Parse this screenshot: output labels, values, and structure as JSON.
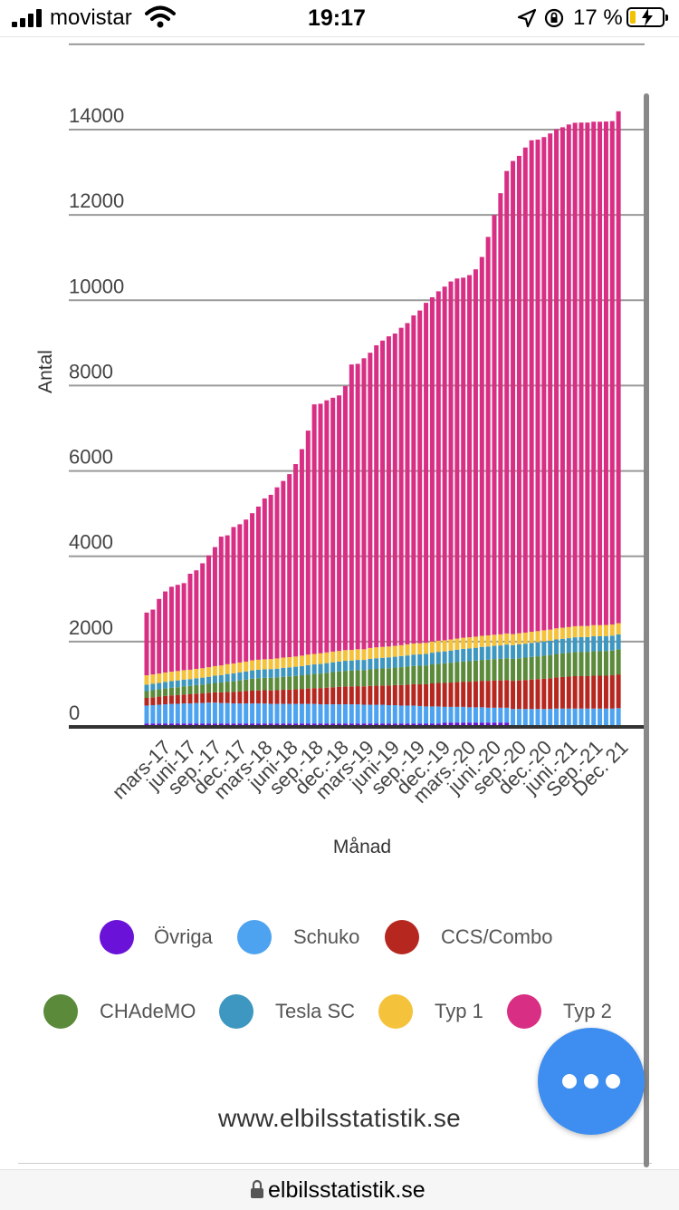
{
  "status_bar": {
    "carrier": "movistar",
    "time": "19:17",
    "battery": "17 %"
  },
  "chart_data": {
    "type": "bar",
    "stacked": true,
    "ylabel": "Antal",
    "xlabel": "Månad",
    "ylim": [
      0,
      14000
    ],
    "y_ticks": [
      0,
      2000,
      4000,
      6000,
      8000,
      10000,
      12000,
      14000
    ],
    "x_tick_labels": [
      "mars-17",
      "juni-17",
      "sep.-17",
      "dec.-17",
      "mars-18",
      "juni-18",
      "sep.-18",
      "dec.-18",
      "mars-19",
      "juni-19",
      "sep.-19",
      "dec.-19",
      "mars.-20",
      "juni.-20",
      "sep.-20",
      "dec.-20",
      "juni.-21",
      "Sep.-21",
      "Dec. 21"
    ],
    "grid": true,
    "legend_position": "bottom",
    "series": [
      {
        "name": "Övriga",
        "color": "#6a12d8",
        "values": [
          80,
          80,
          80,
          80,
          80,
          80,
          80,
          80,
          80,
          80,
          80,
          80,
          80,
          80,
          80,
          80,
          80,
          80,
          80,
          80,
          80,
          80,
          80,
          80,
          80,
          80,
          80,
          80,
          80,
          80,
          80,
          80,
          80,
          80,
          80,
          80,
          80,
          80,
          80,
          80,
          80,
          80,
          80,
          80,
          80,
          80,
          80,
          80,
          100,
          100,
          100,
          100,
          100,
          100,
          100,
          100,
          100,
          100,
          100,
          40,
          40,
          40,
          40,
          40,
          40,
          40,
          40,
          40,
          40,
          40,
          40,
          40,
          40,
          40,
          40,
          40,
          40,
          40
        ]
      },
      {
        "name": "Schuko",
        "color": "#4da3f0",
        "values": [
          420,
          430,
          440,
          450,
          460,
          460,
          470,
          470,
          480,
          480,
          490,
          490,
          480,
          480,
          470,
          470,
          470,
          470,
          470,
          470,
          460,
          460,
          460,
          460,
          460,
          460,
          460,
          460,
          450,
          450,
          450,
          450,
          450,
          450,
          450,
          440,
          440,
          440,
          440,
          430,
          430,
          420,
          420,
          420,
          410,
          400,
          400,
          400,
          370,
          370,
          370,
          370,
          360,
          360,
          360,
          350,
          350,
          350,
          350,
          380,
          380,
          380,
          380,
          380,
          380,
          380,
          390,
          390,
          390,
          390,
          390,
          390,
          390,
          390,
          390,
          390,
          400
        ]
      },
      {
        "name": "CCS/Combo",
        "color": "#b5271f",
        "values": [
          180,
          185,
          190,
          195,
          200,
          205,
          210,
          215,
          220,
          225,
          230,
          240,
          250,
          260,
          270,
          280,
          290,
          300,
          305,
          310,
          315,
          320,
          330,
          335,
          340,
          350,
          360,
          370,
          380,
          390,
          400,
          410,
          420,
          420,
          425,
          430,
          440,
          445,
          450,
          460,
          470,
          480,
          490,
          500,
          510,
          520,
          540,
          550,
          560,
          570,
          580,
          590,
          600,
          610,
          620,
          630,
          640,
          640,
          650,
          660,
          670,
          680,
          690,
          700,
          710,
          720,
          730,
          740,
          750,
          760,
          760,
          760,
          770,
          770,
          770,
          780,
          790
        ]
      },
      {
        "name": "CHAdeMO",
        "color": "#5a8a3a",
        "values": [
          160,
          165,
          170,
          175,
          180,
          185,
          190,
          195,
          200,
          205,
          210,
          220,
          230,
          240,
          250,
          260,
          270,
          280,
          285,
          290,
          295,
          300,
          305,
          310,
          315,
          320,
          330,
          335,
          340,
          350,
          355,
          360,
          365,
          370,
          375,
          380,
          390,
          395,
          400,
          405,
          410,
          420,
          425,
          430,
          435,
          440,
          445,
          450,
          460,
          465,
          470,
          475,
          480,
          485,
          490,
          495,
          500,
          505,
          510,
          515,
          520,
          525,
          530,
          535,
          540,
          545,
          550,
          555,
          560,
          565,
          570,
          570,
          575,
          575,
          580,
          580,
          590
        ]
      },
      {
        "name": "Tesla SC",
        "color": "#3d97c0",
        "values": [
          150,
          150,
          150,
          155,
          155,
          160,
          160,
          160,
          160,
          165,
          165,
          170,
          175,
          180,
          185,
          190,
          190,
          195,
          200,
          200,
          205,
          205,
          210,
          210,
          215,
          215,
          220,
          220,
          225,
          225,
          230,
          230,
          235,
          235,
          240,
          240,
          245,
          250,
          250,
          255,
          255,
          260,
          260,
          265,
          265,
          270,
          275,
          280,
          280,
          285,
          290,
          295,
          300,
          300,
          305,
          310,
          310,
          315,
          320,
          320,
          325,
          325,
          330,
          330,
          335,
          335,
          340,
          340,
          340,
          345,
          345,
          345,
          350,
          350,
          350,
          350,
          350
        ]
      },
      {
        "name": "Typ 1",
        "color": "#f5c33b",
        "values": [
          220,
          220,
          220,
          220,
          220,
          220,
          220,
          220,
          220,
          220,
          225,
          225,
          225,
          230,
          230,
          230,
          230,
          235,
          235,
          235,
          235,
          240,
          240,
          240,
          240,
          245,
          245,
          245,
          250,
          250,
          250,
          250,
          250,
          250,
          250,
          250,
          255,
          255,
          255,
          255,
          255,
          255,
          260,
          260,
          260,
          260,
          260,
          260,
          260,
          260,
          260,
          260,
          260,
          260,
          260,
          260,
          260,
          260,
          260,
          260,
          260,
          260,
          260,
          260,
          260,
          260,
          260,
          260,
          260,
          260,
          260,
          260,
          260,
          260,
          260,
          260,
          260
        ]
      },
      {
        "name": "Typ 2",
        "color": "#d82f84",
        "values": [
          1470,
          1520,
          1750,
          1900,
          1990,
          2020,
          2040,
          2250,
          2310,
          2460,
          2620,
          2790,
          3020,
          3020,
          3200,
          3240,
          3330,
          3450,
          3590,
          3770,
          3850,
          4010,
          4140,
          4290,
          4510,
          4840,
          5250,
          5850,
          5850,
          5910,
          5950,
          5990,
          6190,
          6690,
          6690,
          6820,
          6920,
          7080,
          7180,
          7270,
          7320,
          7440,
          7530,
          7690,
          7800,
          7970,
          8070,
          8190,
          8290,
          8390,
          8440,
          8440,
          8490,
          8610,
          8880,
          9340,
          9840,
          10340,
          10840,
          11090,
          11190,
          11370,
          11520,
          11520,
          11560,
          11630,
          11700,
          11730,
          11780,
          11800,
          11800,
          11800,
          11800,
          11800,
          11800,
          11800,
          12000
        ]
      }
    ]
  },
  "legend_labels": [
    "Övriga",
    "Schuko",
    "CCS/Combo",
    "CHAdeMO",
    "Tesla SC",
    "Typ 1",
    "Typ 2"
  ],
  "footer": {
    "site": "www.elbilsstatistik.se",
    "url": "elbilsstatistik.se"
  }
}
